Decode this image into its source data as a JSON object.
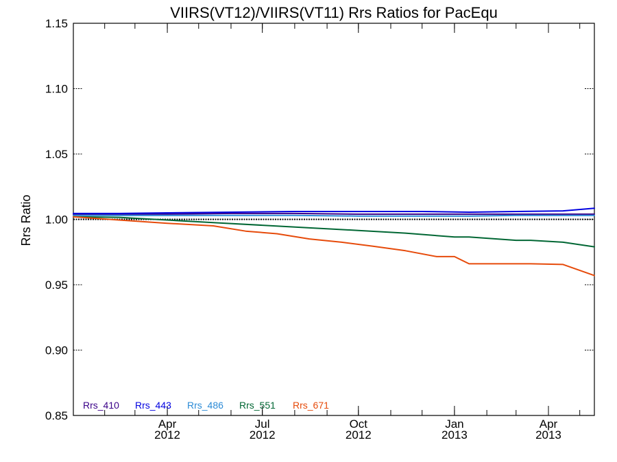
{
  "chart_data": {
    "type": "line",
    "title": "VIIRS(VT12)/VIIRS(VT11)  Rrs Ratios for PacEqu",
    "xlabel": "",
    "ylabel": "Rrs Ratio",
    "ylim": [
      0.85,
      1.15
    ],
    "xlim": [
      "2012-01-02",
      "2013-05-15"
    ],
    "yticks": [
      "0.85",
      "0.90",
      "0.95",
      "1.00",
      "1.05",
      "1.10",
      "1.15"
    ],
    "xticks": [
      {
        "date": "2012-04-01",
        "month": "Apr",
        "year": "2012"
      },
      {
        "date": "2012-07-01",
        "month": "Jul",
        "year": "2012"
      },
      {
        "date": "2012-10-01",
        "month": "Oct",
        "year": "2012"
      },
      {
        "date": "2013-01-01",
        "month": "Jan",
        "year": "2013"
      },
      {
        "date": "2013-04-01",
        "month": "Apr",
        "year": "2013"
      }
    ],
    "reference_line": 1.0,
    "legend_position": "bottom-left",
    "series": [
      {
        "name": "Rrs_410",
        "color": "#3a0088",
        "x": [
          "2012-01-02",
          "2012-02-15",
          "2012-04-01",
          "2012-06-01",
          "2012-08-01",
          "2012-10-01",
          "2012-12-01",
          "2013-01-15",
          "2013-03-01",
          "2013-04-15",
          "2013-05-15"
        ],
        "values": [
          1.004,
          1.004,
          1.004,
          1.0045,
          1.0045,
          1.004,
          1.004,
          1.004,
          1.004,
          1.004,
          1.004
        ]
      },
      {
        "name": "Rrs_443",
        "color": "#0000e0",
        "x": [
          "2012-01-02",
          "2012-02-15",
          "2012-04-01",
          "2012-06-01",
          "2012-08-01",
          "2012-10-01",
          "2012-12-01",
          "2013-01-15",
          "2013-03-01",
          "2013-04-15",
          "2013-05-15"
        ],
        "values": [
          1.0045,
          1.0045,
          1.005,
          1.0055,
          1.006,
          1.006,
          1.006,
          1.0055,
          1.006,
          1.0065,
          1.0085
        ]
      },
      {
        "name": "Rrs_486",
        "color": "#2a8ad6",
        "x": [
          "2012-01-02",
          "2012-02-15",
          "2012-04-01",
          "2012-06-01",
          "2012-08-01",
          "2012-10-01",
          "2012-12-01",
          "2013-01-15",
          "2013-03-01",
          "2013-04-15",
          "2013-05-15"
        ],
        "values": [
          1.003,
          1.003,
          1.003,
          1.003,
          1.003,
          1.0025,
          1.0025,
          1.0025,
          1.003,
          1.003,
          1.003
        ]
      },
      {
        "name": "Rrs_551",
        "color": "#006633",
        "x": [
          "2012-01-02",
          "2012-02-15",
          "2012-04-01",
          "2012-05-15",
          "2012-07-01",
          "2012-08-15",
          "2012-10-01",
          "2012-11-15",
          "2013-01-01",
          "2013-01-15",
          "2013-03-01",
          "2013-03-15",
          "2013-04-15",
          "2013-05-15"
        ],
        "values": [
          1.002,
          1.0015,
          0.9995,
          0.9975,
          0.9955,
          0.9935,
          0.9915,
          0.9895,
          0.9865,
          0.9865,
          0.984,
          0.984,
          0.9825,
          0.979
        ]
      },
      {
        "name": "Rrs_671",
        "color": "#e64a0a",
        "x": [
          "2012-01-02",
          "2012-02-15",
          "2012-04-01",
          "2012-05-15",
          "2012-06-15",
          "2012-07-15",
          "2012-08-15",
          "2012-09-15",
          "2012-10-15",
          "2012-11-15",
          "2012-12-15",
          "2013-01-01",
          "2013-01-15",
          "2013-02-15",
          "2013-03-15",
          "2013-04-15",
          "2013-05-15"
        ],
        "values": [
          1.002,
          0.9995,
          0.997,
          0.995,
          0.991,
          0.989,
          0.985,
          0.9825,
          0.9795,
          0.976,
          0.9715,
          0.9715,
          0.966,
          0.966,
          0.966,
          0.9655,
          0.957
        ]
      }
    ]
  }
}
